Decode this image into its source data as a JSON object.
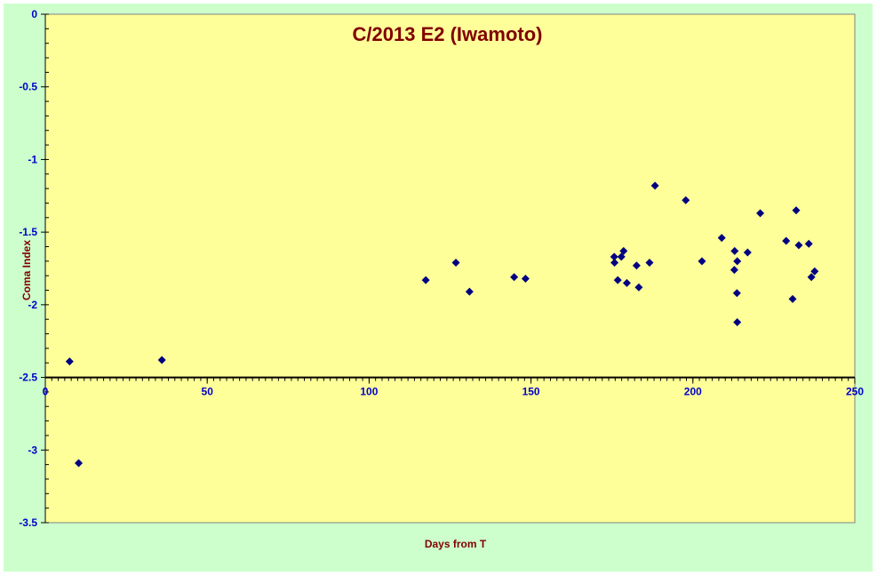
{
  "colors": {
    "outer_background": "#ccffcc",
    "plot_background": "#ffff99",
    "marker": "#000080",
    "axis_text": "#0000cc",
    "title_text": "#800000"
  },
  "chart_data": {
    "type": "scatter",
    "title": "C/2013 E2 (Iwamoto)",
    "xlabel": "Days from T",
    "ylabel": "Coma Index",
    "xlim": [
      0,
      250
    ],
    "ylim": [
      -3.5,
      0
    ],
    "x_axis_crosses_y_at": -2.5,
    "x_ticks": [
      50,
      100,
      150,
      200,
      250
    ],
    "x_tick_labels": [
      "50",
      "100",
      "150",
      "200",
      "250"
    ],
    "origin_label": "0",
    "y_ticks": [
      0,
      -0.5,
      -1,
      -1.5,
      -2,
      -2.5,
      -3,
      -3.5
    ],
    "y_tick_labels": [
      "0",
      "-0.5",
      "-1",
      "-1.5",
      "-2",
      "-2.5",
      "-3",
      "-3.5"
    ],
    "grid": false,
    "legend": false,
    "marker_shape": "diamond",
    "series": [
      {
        "points": [
          [
            7.5,
            -2.39
          ],
          [
            10.3,
            -3.09
          ],
          [
            36.0,
            -2.38
          ],
          [
            117.5,
            -1.83
          ],
          [
            126.8,
            -1.71
          ],
          [
            131.0,
            -1.91
          ],
          [
            144.8,
            -1.81
          ],
          [
            148.3,
            -1.82
          ],
          [
            175.7,
            -1.67
          ],
          [
            175.8,
            -1.71
          ],
          [
            176.8,
            -1.83
          ],
          [
            177.9,
            -1.67
          ],
          [
            178.6,
            -1.63
          ],
          [
            179.6,
            -1.85
          ],
          [
            182.6,
            -1.73
          ],
          [
            183.3,
            -1.88
          ],
          [
            186.6,
            -1.71
          ],
          [
            188.3,
            -1.18
          ],
          [
            197.8,
            -1.28
          ],
          [
            202.8,
            -1.7
          ],
          [
            208.9,
            -1.54
          ],
          [
            212.8,
            -1.76
          ],
          [
            212.9,
            -1.63
          ],
          [
            213.6,
            -1.92
          ],
          [
            213.7,
            -2.12
          ],
          [
            213.7,
            -1.7
          ],
          [
            216.9,
            -1.64
          ],
          [
            220.8,
            -1.37
          ],
          [
            228.8,
            -1.56
          ],
          [
            230.8,
            -1.96
          ],
          [
            231.9,
            -1.35
          ],
          [
            232.7,
            -1.59
          ],
          [
            235.8,
            -1.58
          ],
          [
            236.6,
            -1.81
          ],
          [
            237.6,
            -1.77
          ]
        ]
      }
    ]
  }
}
